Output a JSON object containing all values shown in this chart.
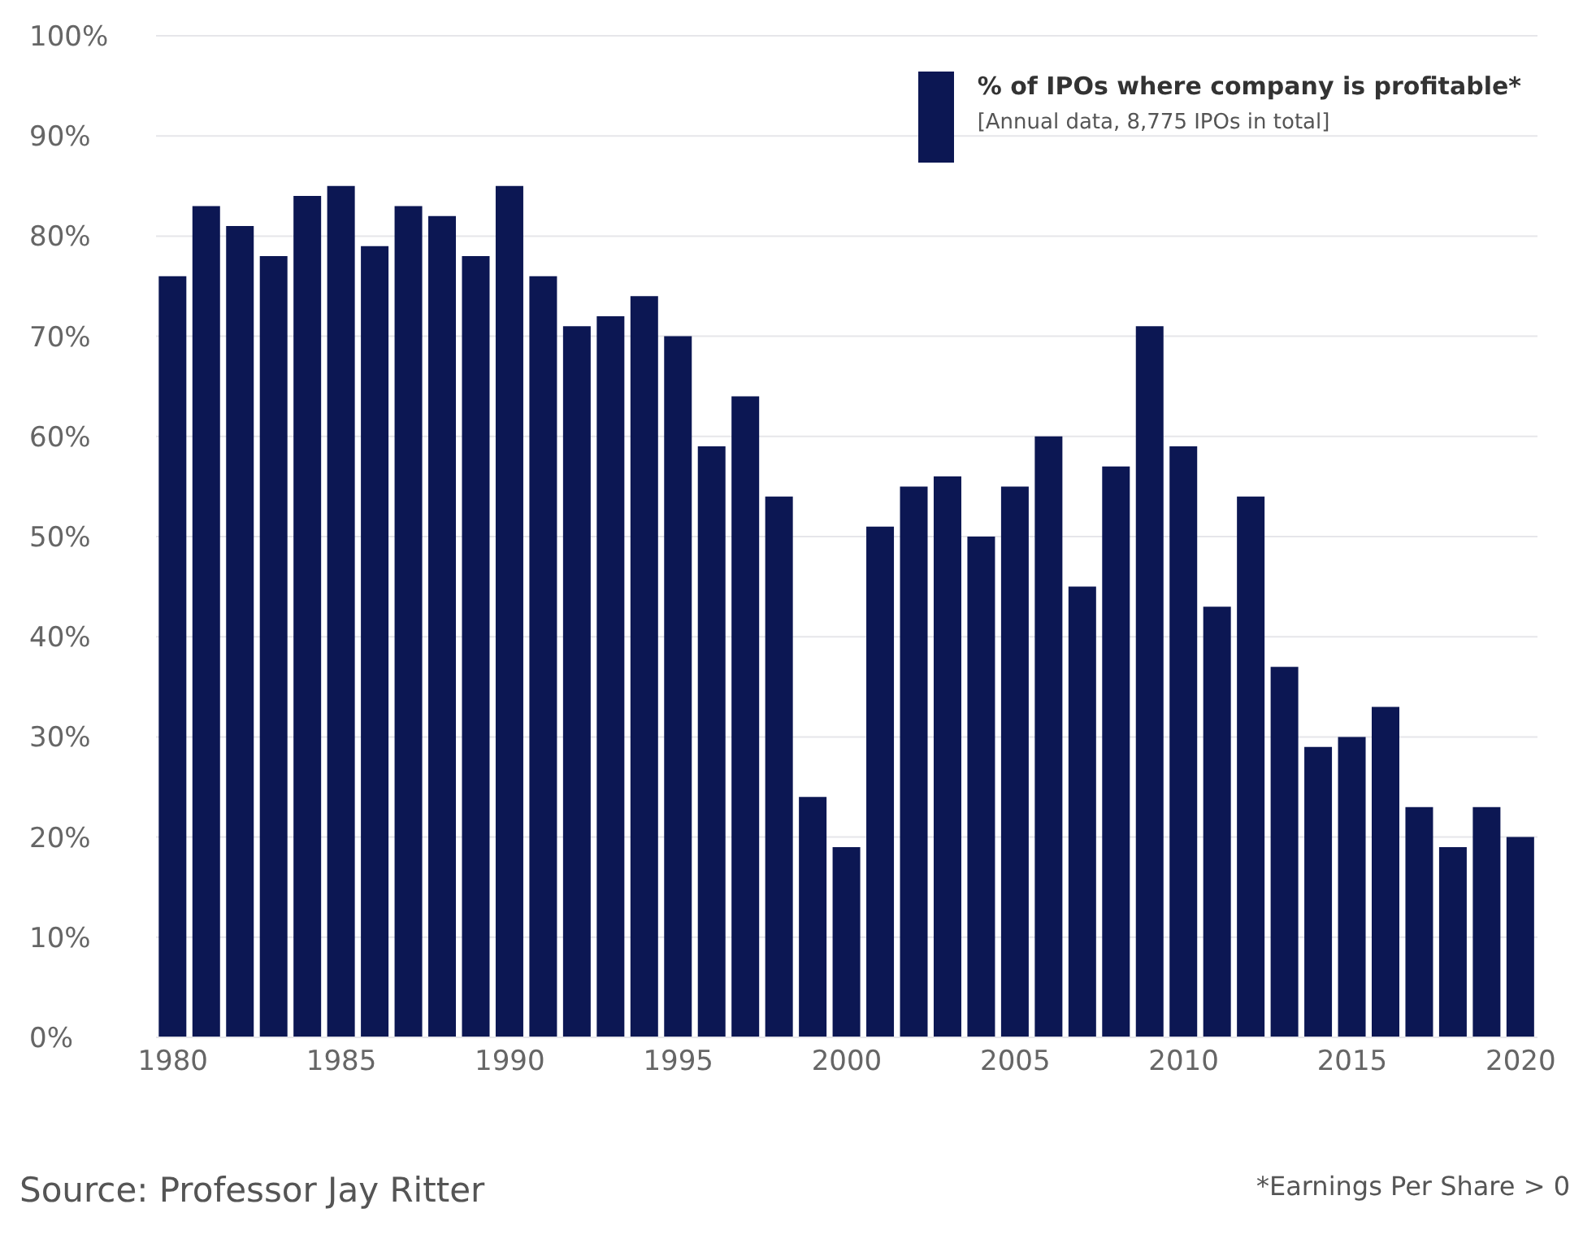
{
  "chart_data": {
    "type": "bar",
    "categories": [
      "1980",
      null,
      null,
      null,
      null,
      "1985",
      null,
      null,
      null,
      null,
      "1990",
      null,
      null,
      null,
      null,
      "1995",
      null,
      null,
      null,
      null,
      "2000",
      null,
      null,
      null,
      null,
      "2005",
      null,
      null,
      null,
      null,
      "2010",
      null,
      null,
      null,
      null,
      "2015",
      null,
      null,
      null,
      null,
      "2020"
    ],
    "series": [
      {
        "name": "% of IPOs where company is profitable*",
        "color": "#0c1753",
        "values": [
          76,
          83,
          81,
          78,
          84,
          85,
          79,
          83,
          82,
          78,
          85,
          76,
          71,
          72,
          74,
          70,
          59,
          64,
          54,
          24,
          19,
          51,
          55,
          56,
          50,
          55,
          60,
          45,
          57,
          71,
          59,
          43,
          54,
          37,
          29,
          30,
          33,
          23,
          19,
          23,
          20
        ]
      }
    ],
    "ylim": [
      0,
      100
    ],
    "yticks": [
      {
        "value": 0,
        "label": "0%"
      },
      {
        "value": 10,
        "label": "10%"
      },
      {
        "value": 20,
        "label": "20%"
      },
      {
        "value": 30,
        "label": "30%"
      },
      {
        "value": 40,
        "label": "40%"
      },
      {
        "value": 50,
        "label": "50%"
      },
      {
        "value": 60,
        "label": "60%"
      },
      {
        "value": 70,
        "label": "70%"
      },
      {
        "value": 80,
        "label": "80%"
      },
      {
        "value": 90,
        "label": "90%"
      },
      {
        "value": 100,
        "label": "100%"
      }
    ],
    "grid": "y",
    "legend": "top right",
    "annotations": [
      "[Annual data, 8,775 IPOs in total]",
      "Source: Professor Jay Ritter",
      "*Earnings Per Share > 0"
    ]
  }
}
